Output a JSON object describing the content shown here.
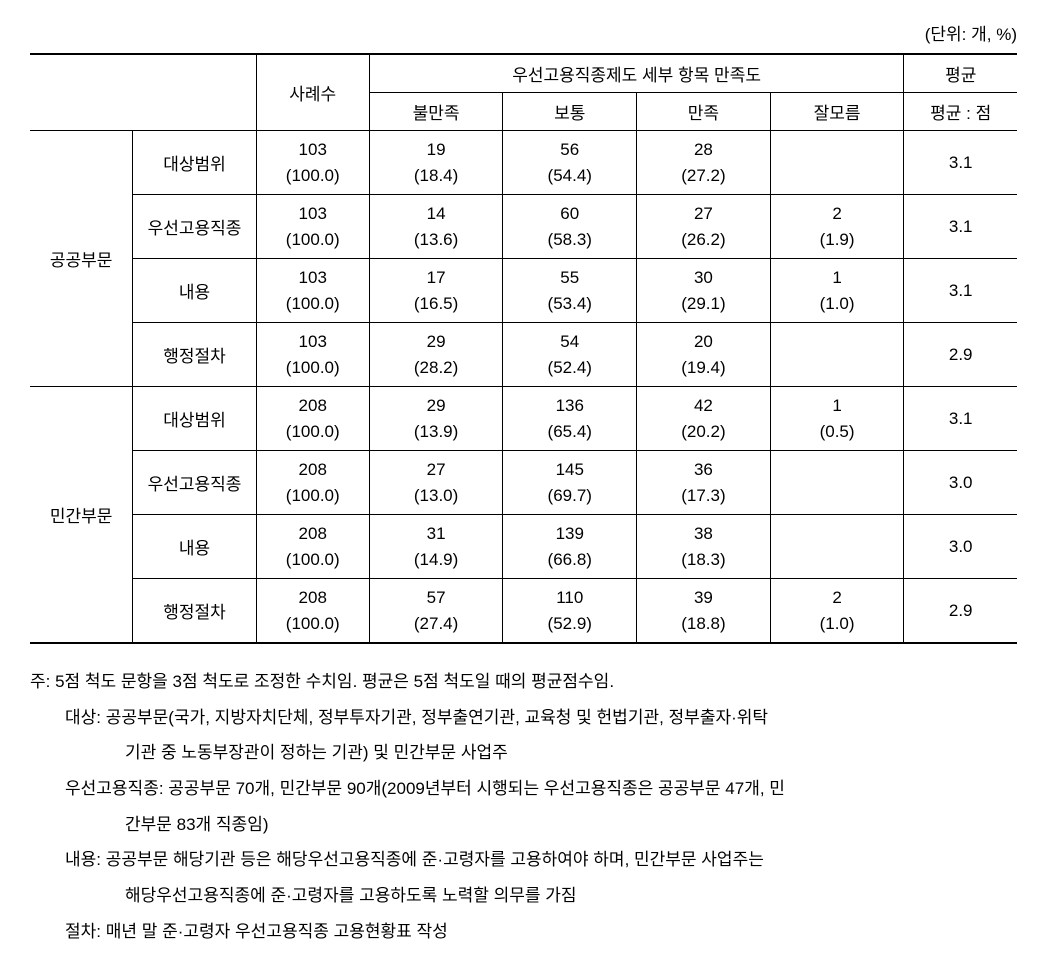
{
  "unit_label": "(단위: 개, %)",
  "header": {
    "cases": "사례수",
    "detail_group": "우선고용직종제도 세부 항목 만족도",
    "dissatisfied": "불만족",
    "normal": "보통",
    "satisfied": "만족",
    "unknown": "잘모름",
    "avg_group": "평균",
    "avg_label": "평균 : 점"
  },
  "sectors": [
    {
      "name": "공공부문",
      "rows": [
        {
          "item": "대상범위",
          "cases_n": "103",
          "cases_p": "(100.0)",
          "c1_n": "19",
          "c1_p": "(18.4)",
          "c2_n": "56",
          "c2_p": "(54.4)",
          "c3_n": "28",
          "c3_p": "(27.2)",
          "c4_n": "",
          "c4_p": "",
          "avg": "3.1"
        },
        {
          "item": "우선고용직종",
          "cases_n": "103",
          "cases_p": "(100.0)",
          "c1_n": "14",
          "c1_p": "(13.6)",
          "c2_n": "60",
          "c2_p": "(58.3)",
          "c3_n": "27",
          "c3_p": "(26.2)",
          "c4_n": "2",
          "c4_p": "(1.9)",
          "avg": "3.1"
        },
        {
          "item": "내용",
          "cases_n": "103",
          "cases_p": "(100.0)",
          "c1_n": "17",
          "c1_p": "(16.5)",
          "c2_n": "55",
          "c2_p": "(53.4)",
          "c3_n": "30",
          "c3_p": "(29.1)",
          "c4_n": "1",
          "c4_p": "(1.0)",
          "avg": "3.1"
        },
        {
          "item": "행정절차",
          "cases_n": "103",
          "cases_p": "(100.0)",
          "c1_n": "29",
          "c1_p": "(28.2)",
          "c2_n": "54",
          "c2_p": "(52.4)",
          "c3_n": "20",
          "c3_p": "(19.4)",
          "c4_n": "",
          "c4_p": "",
          "avg": "2.9"
        }
      ]
    },
    {
      "name": "민간부문",
      "rows": [
        {
          "item": "대상범위",
          "cases_n": "208",
          "cases_p": "(100.0)",
          "c1_n": "29",
          "c1_p": "(13.9)",
          "c2_n": "136",
          "c2_p": "(65.4)",
          "c3_n": "42",
          "c3_p": "(20.2)",
          "c4_n": "1",
          "c4_p": "(0.5)",
          "avg": "3.1"
        },
        {
          "item": "우선고용직종",
          "cases_n": "208",
          "cases_p": "(100.0)",
          "c1_n": "27",
          "c1_p": "(13.0)",
          "c2_n": "145",
          "c2_p": "(69.7)",
          "c3_n": "36",
          "c3_p": "(17.3)",
          "c4_n": "",
          "c4_p": "",
          "avg": "3.0"
        },
        {
          "item": "내용",
          "cases_n": "208",
          "cases_p": "(100.0)",
          "c1_n": "31",
          "c1_p": "(14.9)",
          "c2_n": "139",
          "c2_p": "(66.8)",
          "c3_n": "38",
          "c3_p": "(18.3)",
          "c4_n": "",
          "c4_p": "",
          "avg": "3.0"
        },
        {
          "item": "행정절차",
          "cases_n": "208",
          "cases_p": "(100.0)",
          "c1_n": "57",
          "c1_p": "(27.4)",
          "c2_n": "110",
          "c2_p": "(52.9)",
          "c3_n": "39",
          "c3_p": "(18.8)",
          "c4_n": "2",
          "c4_p": "(1.0)",
          "avg": "2.9"
        }
      ]
    }
  ],
  "notes": {
    "line1": "주: 5점 척도 문항을 3점 척도로 조정한 수치임. 평균은 5점 척도일 때의 평균점수임.",
    "line2": "대상: 공공부문(국가, 지방자치단체, 정부투자기관, 정부출연기관, 교육청 및 헌법기관, 정부출자·위탁",
    "line3": "기관 중 노동부장관이 정하는 기관) 및 민간부문 사업주",
    "line4": "우선고용직종: 공공부문 70개, 민간부문 90개(2009년부터 시행되는 우선고용직종은 공공부문 47개, 민",
    "line5": "간부문 83개 직종임)",
    "line6": "내용: 공공부문 해당기관 등은 해당우선고용직종에 준·고령자를 고용하여야 하며, 민간부문 사업주는",
    "line7": "해당우선고용직종에 준·고령자를 고용하도록 노력할 의무를 가짐",
    "line8": "절차: 매년 말 준·고령자 우선고용직종 고용현황표 작성"
  }
}
